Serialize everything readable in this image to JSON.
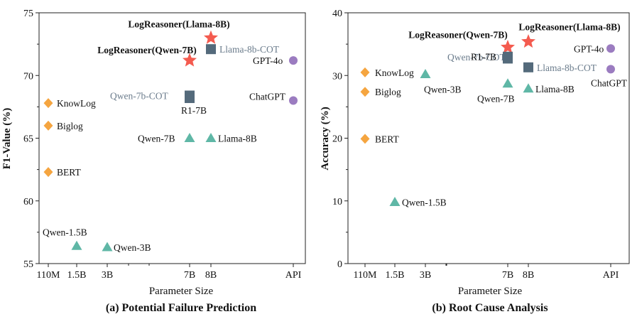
{
  "colors": {
    "logreasoner": "#f45b4f",
    "cot": "#546a7b",
    "base": "#5fb7a6",
    "api": "#9b7cc0",
    "small": "#f5a540",
    "gray_label": "#6b7c8c"
  },
  "chart_data": [
    {
      "type": "scatter",
      "title": "(a) Potential Failure Prediction",
      "xlabel": "Parameter Size",
      "ylabel": "F1-Value (%)",
      "ylim": [
        55,
        75
      ],
      "yticks": [
        55,
        60,
        65,
        70,
        75
      ],
      "xticks": [
        "110M",
        "1.5B",
        "3B",
        "7B",
        "8B",
        "API"
      ],
      "points": [
        {
          "label": "LogReasoner(Llama-8B)",
          "x": "8B",
          "y": 73.0,
          "marker": "star",
          "color": "logreasoner",
          "style": "bold"
        },
        {
          "label": "LogReasoner(Qwen-7B)",
          "x": "7B",
          "y": 71.2,
          "marker": "star",
          "color": "logreasoner",
          "style": "bold"
        },
        {
          "label": "Llama-8b-COT",
          "x": "8B",
          "y": 72.1,
          "marker": "square",
          "color": "cot",
          "style": "gray"
        },
        {
          "label": "Qwen-7b-COT",
          "x": "7B",
          "y": 68.4,
          "marker": "square",
          "color": "cot",
          "style": "gray"
        },
        {
          "label": "R1-7B",
          "x": "7B",
          "y": 68.2,
          "marker": "square",
          "color": "cot",
          "style": "normal"
        },
        {
          "label": "GPT-4o",
          "x": "API",
          "y": 71.2,
          "marker": "circle",
          "color": "api",
          "style": "normal"
        },
        {
          "label": "ChatGPT",
          "x": "API",
          "y": 68.0,
          "marker": "circle",
          "color": "api",
          "style": "normal"
        },
        {
          "label": "KnowLog",
          "x": "110M",
          "y": 67.8,
          "marker": "diamond",
          "color": "small",
          "style": "normal"
        },
        {
          "label": "Biglog",
          "x": "110M",
          "y": 66.0,
          "marker": "diamond",
          "color": "small",
          "style": "normal"
        },
        {
          "label": "BERT",
          "x": "110M",
          "y": 62.3,
          "marker": "diamond",
          "color": "small",
          "style": "normal"
        },
        {
          "label": "Qwen-7B",
          "x": "7B",
          "y": 65.0,
          "marker": "triangle",
          "color": "base",
          "style": "normal"
        },
        {
          "label": "Llama-8B",
          "x": "8B",
          "y": 65.0,
          "marker": "triangle",
          "color": "base",
          "style": "normal"
        },
        {
          "label": "Qwen-1.5B",
          "x": "1.5B",
          "y": 56.4,
          "marker": "triangle",
          "color": "base",
          "style": "normal"
        },
        {
          "label": "Qwen-3B",
          "x": "3B",
          "y": 56.3,
          "marker": "triangle",
          "color": "base",
          "style": "normal"
        }
      ]
    },
    {
      "type": "scatter",
      "title": "(b) Root Cause Analysis",
      "xlabel": "Parameter Size",
      "ylabel": "Accuracy (%)",
      "ylim": [
        0,
        40
      ],
      "yticks": [
        0,
        10,
        20,
        30,
        40
      ],
      "xticks": [
        "110M",
        "1.5B",
        "3B",
        "7B",
        "8B",
        "API"
      ],
      "points": [
        {
          "label": "LogReasoner(Llama-8B)",
          "x": "8B",
          "y": 35.4,
          "marker": "star",
          "color": "logreasoner",
          "style": "bold"
        },
        {
          "label": "LogReasoner(Qwen-7B)",
          "x": "7B",
          "y": 34.5,
          "marker": "star",
          "color": "logreasoner",
          "style": "bold"
        },
        {
          "label": "Llama-8b-COT",
          "x": "8B",
          "y": 31.3,
          "marker": "square",
          "color": "cot",
          "style": "gray"
        },
        {
          "label": "Qwen-7b-COT",
          "x": "7B",
          "y": 33.0,
          "marker": "square",
          "color": "cot",
          "style": "gray"
        },
        {
          "label": "R1-7B",
          "x": "7B",
          "y": 32.7,
          "marker": "square",
          "color": "cot",
          "style": "normal"
        },
        {
          "label": "GPT-4o",
          "x": "API",
          "y": 34.3,
          "marker": "circle",
          "color": "api",
          "style": "normal"
        },
        {
          "label": "ChatGPT",
          "x": "API",
          "y": 31.0,
          "marker": "circle",
          "color": "api",
          "style": "normal"
        },
        {
          "label": "KnowLog",
          "x": "110M",
          "y": 30.5,
          "marker": "diamond",
          "color": "small",
          "style": "normal"
        },
        {
          "label": "Biglog",
          "x": "110M",
          "y": 27.4,
          "marker": "diamond",
          "color": "small",
          "style": "normal"
        },
        {
          "label": "BERT",
          "x": "110M",
          "y": 19.9,
          "marker": "diamond",
          "color": "small",
          "style": "normal"
        },
        {
          "label": "Qwen-3B",
          "x": "3B",
          "y": 30.2,
          "marker": "triangle",
          "color": "base",
          "style": "normal"
        },
        {
          "label": "Qwen-7B",
          "x": "7B",
          "y": 28.7,
          "marker": "triangle",
          "color": "base",
          "style": "normal"
        },
        {
          "label": "Llama-8B",
          "x": "8B",
          "y": 27.9,
          "marker": "triangle",
          "color": "base",
          "style": "normal"
        },
        {
          "label": "Qwen-1.5B",
          "x": "1.5B",
          "y": 9.8,
          "marker": "triangle",
          "color": "base",
          "style": "normal"
        }
      ]
    }
  ]
}
